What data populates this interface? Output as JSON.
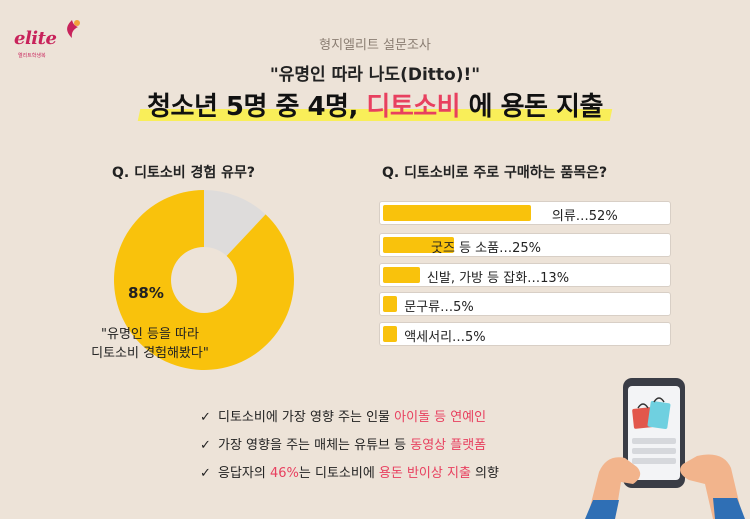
{
  "brand": {
    "name": "elite",
    "tagline": "엘리트학생복",
    "accent": "#c8235b"
  },
  "header": {
    "survey_label": "형지엘리트 설문조사",
    "quote": "\"유명인 따라 나도(Ditto)!\"",
    "headline_pre": "청소년 5명 중 4명, ",
    "headline_accent": "디토소비",
    "headline_post": " 에 용돈 지출"
  },
  "colors": {
    "accent_pink": "#e8405f",
    "bar_yellow": "#f9c20c",
    "donut_gray": "#dedcdb",
    "background": "#ede3d8"
  },
  "chart_data": [
    {
      "type": "pie",
      "title": "Q. 디토소비 경험 유무?",
      "values": [
        88,
        12
      ],
      "labels": [
        "\"유명인 등을 따라 디토소비 경험해봤다\"",
        ""
      ],
      "colors": [
        "#f9c20c",
        "#dedcdb"
      ],
      "data_label": "88%",
      "note_line1": "\"유명인 등을 따라",
      "note_line2": "디토소비 경험해봤다\"",
      "donut": true
    },
    {
      "type": "bar",
      "orientation": "horizontal",
      "title": "Q. 디토소비로 주로 구매하는 품목은?",
      "categories": [
        "의류",
        "굿즈 등 소품",
        "신발, 가방 등 잡화",
        "문구류",
        "액세서리"
      ],
      "values": [
        52,
        25,
        13,
        5,
        5
      ],
      "labels": [
        "의류…52%",
        "굿즈 등 소품…25%",
        "신발, 가방 등 잡화…13%",
        "문구류…5%",
        "액세서리…5%"
      ],
      "unit": "%"
    }
  ],
  "findings": [
    {
      "pre": "디토소비에 가장 영향 주는 인물 ",
      "hot": "아이돌 등 연예인",
      "mid": "",
      "hot2": "",
      "post": ""
    },
    {
      "pre": "가장 영향을 주는 매체는 유튜브 등 ",
      "hot": "동영상 플랫폼",
      "mid": "",
      "hot2": "",
      "post": ""
    },
    {
      "pre": "응답자의 ",
      "hot": "46%",
      "mid": "는 디토소비에 ",
      "hot2": "용돈 반이상 지출",
      "post": " 의향"
    }
  ],
  "check_glyph": "✓",
  "illustration": {
    "icon": "phone-shopping-bags-icon"
  }
}
